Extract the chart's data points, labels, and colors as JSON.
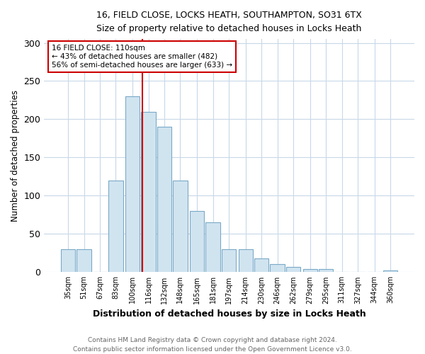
{
  "title1": "16, FIELD CLOSE, LOCKS HEATH, SOUTHAMPTON, SO31 6TX",
  "title2": "Size of property relative to detached houses in Locks Heath",
  "xlabel": "Distribution of detached houses by size in Locks Heath",
  "ylabel": "Number of detached properties",
  "footer1": "Contains HM Land Registry data © Crown copyright and database right 2024.",
  "footer2": "Contains public sector information licensed under the Open Government Licence v3.0.",
  "annotation_line1": "16 FIELD CLOSE: 110sqm",
  "annotation_line2": "← 43% of detached houses are smaller (482)",
  "annotation_line3": "56% of semi-detached houses are larger (633) →",
  "bar_labels": [
    "35sqm",
    "51sqm",
    "67sqm",
    "83sqm",
    "100sqm",
    "116sqm",
    "132sqm",
    "148sqm",
    "165sqm",
    "181sqm",
    "197sqm",
    "214sqm",
    "230sqm",
    "246sqm",
    "262sqm",
    "279sqm",
    "295sqm",
    "311sqm",
    "327sqm",
    "344sqm",
    "360sqm"
  ],
  "bar_values": [
    30,
    30,
    0,
    120,
    230,
    210,
    190,
    120,
    80,
    65,
    30,
    30,
    18,
    11,
    7,
    4,
    4,
    0,
    0,
    0,
    2
  ],
  "bar_color": "#d0e4f0",
  "bar_edge_color": "#7aaac8",
  "vline_color": "#cc0000",
  "box_edge_color": "#cc0000",
  "ylim": [
    0,
    305
  ],
  "yticks": [
    0,
    50,
    100,
    150,
    200,
    250,
    300
  ],
  "background_color": "#ffffff",
  "grid_color": "#c8d8e8",
  "vline_x_idx": 5
}
